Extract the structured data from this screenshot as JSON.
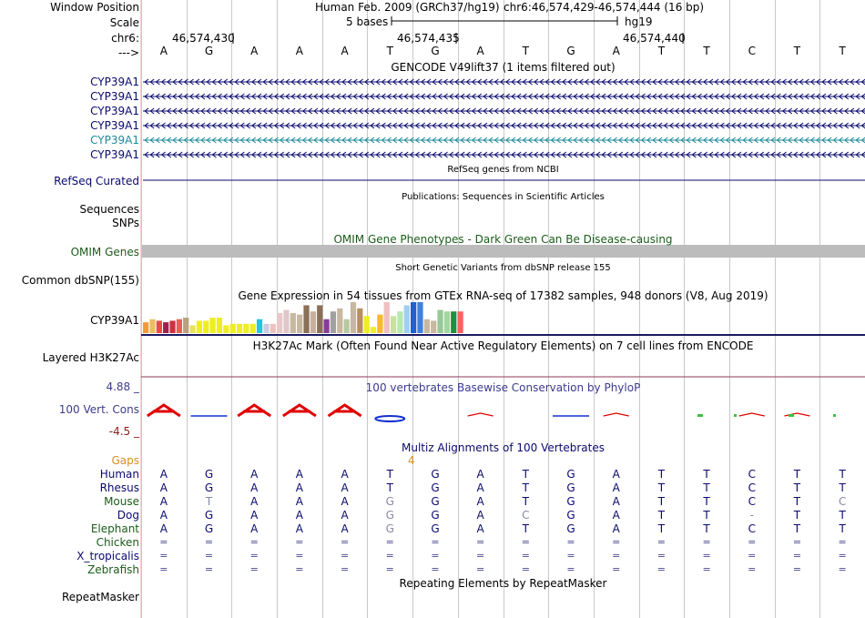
{
  "header": {
    "window_position_label": "Window Position",
    "assembly_title": "Human Feb. 2009 (GRCh37/hg19)",
    "position": "chr6:46,574,429-46,574,444 (16 bp)",
    "scale_label": "Scale",
    "scale_text": "5 bases",
    "db": "hg19",
    "chrom_label": "chr6:",
    "coord_1": "46,574,430",
    "coord_2": "46,574,435",
    "coord_3": "46,574,440",
    "strand_label": "--->"
  },
  "bases": [
    "A",
    "G",
    "A",
    "A",
    "A",
    "T",
    "G",
    "A",
    "T",
    "G",
    "A",
    "T",
    "T",
    "C",
    "T",
    "T"
  ],
  "gencode": {
    "title": "GENCODE V49lift37 (1 items filtered out)",
    "tracks": [
      {
        "label": "CYP39A1",
        "color": "#0a0a6e"
      },
      {
        "label": "CYP39A1",
        "color": "#0a0a6e"
      },
      {
        "label": "CYP39A1",
        "color": "#0a0a6e"
      },
      {
        "label": "CYP39A1",
        "color": "#0a0a6e"
      },
      {
        "label": "CYP39A1",
        "color": "#1f8a9a"
      },
      {
        "label": "CYP39A1",
        "color": "#0a0a6e"
      }
    ]
  },
  "refseq": {
    "title": "RefSeq genes from NCBI",
    "label": "RefSeq Curated"
  },
  "publications": {
    "title": "Publications: Sequences in Scientific Articles",
    "label": "Sequences"
  },
  "snps": {
    "label": "SNPs"
  },
  "omim": {
    "title": "OMIM Gene Phenotypes - Dark Green Can Be Disease-causing",
    "label": "OMIM Genes"
  },
  "dbsnp": {
    "title": "Short Genetic Variants from dbSNP release 155",
    "label": "Common dbSNP(155)"
  },
  "gtex": {
    "title": "Gene Expression in 54 tissues from GTEx RNA-seq of 17382 samples, 948 donors (V8, Aug 2019)",
    "label": "CYP39A1",
    "bars": [
      {
        "v": 0.35,
        "c": "#f39a3c"
      },
      {
        "v": 0.45,
        "c": "#e8c060"
      },
      {
        "v": 0.4,
        "c": "#e84a4a"
      },
      {
        "v": 0.35,
        "c": "#a02050"
      },
      {
        "v": 0.4,
        "c": "#d03040"
      },
      {
        "v": 0.45,
        "c": "#e86050"
      },
      {
        "v": 0.5,
        "c": "#b8a080"
      },
      {
        "v": 0.25,
        "c": "#e8e060"
      },
      {
        "v": 0.4,
        "c": "#eeee20"
      },
      {
        "v": 0.4,
        "c": "#eeee20"
      },
      {
        "v": 0.5,
        "c": "#eeee20"
      },
      {
        "v": 0.5,
        "c": "#eeee20"
      },
      {
        "v": 0.25,
        "c": "#eeee20"
      },
      {
        "v": 0.3,
        "c": "#eeee20"
      },
      {
        "v": 0.3,
        "c": "#eeee20"
      },
      {
        "v": 0.3,
        "c": "#eeee20"
      },
      {
        "v": 0.3,
        "c": "#eeee20"
      },
      {
        "v": 0.45,
        "c": "#20c8d8"
      },
      {
        "v": 0.3,
        "c": "#ccccdd"
      },
      {
        "v": 0.3,
        "c": "#f0c0c0"
      },
      {
        "v": 0.65,
        "c": "#e8c8c8"
      },
      {
        "v": 0.75,
        "c": "#e0c8c8"
      },
      {
        "v": 0.65,
        "c": "#c8b8a0"
      },
      {
        "v": 0.6,
        "c": "#c8b8a0"
      },
      {
        "v": 0.9,
        "c": "#8a7058"
      },
      {
        "v": 0.7,
        "c": "#c8b0a0"
      },
      {
        "v": 0.9,
        "c": "#8a7058"
      },
      {
        "v": 0.45,
        "c": "#8a3c9a"
      },
      {
        "v": 0.7,
        "c": "#a0a0a0"
      },
      {
        "v": 0.8,
        "c": "#c8b8a0"
      },
      {
        "v": 0.45,
        "c": "#b8c8a0"
      },
      {
        "v": 1.0,
        "c": "#c8b8a0"
      },
      {
        "v": 0.8,
        "c": "#b89060"
      },
      {
        "v": 0.55,
        "c": "#eeee20"
      },
      {
        "v": 0.2,
        "c": "#eeee20"
      },
      {
        "v": 0.6,
        "c": "#f8b830"
      },
      {
        "v": 1.0,
        "c": "#f0c0c0"
      },
      {
        "v": 0.55,
        "c": "#c8e0a0"
      },
      {
        "v": 0.7,
        "c": "#b8e8b0"
      },
      {
        "v": 0.9,
        "c": "#a0d0f0"
      },
      {
        "v": 1.0,
        "c": "#2060d0"
      },
      {
        "v": 1.0,
        "c": "#4080e0"
      },
      {
        "v": 0.45,
        "c": "#c8b8a0"
      },
      {
        "v": 0.4,
        "c": "#c8b8a0"
      },
      {
        "v": 0.75,
        "c": "#98c898"
      },
      {
        "v": 0.7,
        "c": "#a0d8a0"
      },
      {
        "v": 0.7,
        "c": "#209040"
      },
      {
        "v": 0.7,
        "c": "#ff6060"
      }
    ]
  },
  "h3k27ac": {
    "title": "H3K27Ac Mark (Often Found Near Active Regulatory Elements) on 7 cell lines from ENCODE",
    "label": "Layered H3K27Ac"
  },
  "phylop": {
    "title": "100 vertebrates Basewise Conservation by PhyloP",
    "label": "100 Vert. Cons",
    "ymax": "4.88 _",
    "ymin": "-4.5 _",
    "scores": [
      4.2,
      -0.5,
      3.6,
      3.5,
      3.6,
      -1.8,
      0,
      0.6,
      0,
      -0.3,
      0.4,
      0,
      0,
      0.1,
      0.1,
      0
    ]
  },
  "multiz": {
    "title": "Multiz Alignments of 100 Vertebrates",
    "gaps_label": "Gaps",
    "gap_count": "4",
    "species": [
      {
        "name": "Human",
        "color": "#0a0a6e",
        "seq": [
          "A",
          "G",
          "A",
          "A",
          "A",
          "T",
          "G",
          "A",
          "T",
          "G",
          "A",
          "T",
          "T",
          "C",
          "T",
          "T"
        ],
        "dim": []
      },
      {
        "name": "Rhesus",
        "color": "#0a0a6e",
        "seq": [
          "A",
          "G",
          "A",
          "A",
          "A",
          "T",
          "G",
          "A",
          "T",
          "G",
          "A",
          "T",
          "T",
          "C",
          "T",
          "T"
        ],
        "dim": []
      },
      {
        "name": "Mouse",
        "color": "#1a5c1a",
        "seq": [
          "A",
          "T",
          "A",
          "A",
          "A",
          "G",
          "G",
          "A",
          "T",
          "G",
          "A",
          "T",
          "T",
          "C",
          "T",
          "C"
        ],
        "dim": [
          1,
          5,
          15
        ]
      },
      {
        "name": "Dog",
        "color": "#0a0a6e",
        "seq": [
          "A",
          "G",
          "A",
          "A",
          "A",
          "G",
          "G",
          "A",
          "C",
          "G",
          "A",
          "T",
          "T",
          "-",
          "T",
          "T"
        ],
        "dim": [
          5,
          8,
          13
        ]
      },
      {
        "name": "Elephant",
        "color": "#1a5c1a",
        "seq": [
          "A",
          "G",
          "A",
          "A",
          "A",
          "G",
          "G",
          "A",
          "T",
          "G",
          "A",
          "T",
          "T",
          "C",
          "T",
          "T"
        ],
        "dim": [
          5
        ]
      },
      {
        "name": "Chicken",
        "color": "#1a5c1a",
        "seq": [
          "=",
          "=",
          "=",
          "=",
          "=",
          "=",
          "=",
          "=",
          "=",
          "=",
          "=",
          "=",
          "=",
          "=",
          "=",
          "="
        ],
        "dim": []
      },
      {
        "name": "X_tropicalis",
        "color": "#0a0a6e",
        "seq": [
          "=",
          "=",
          "=",
          "=",
          "=",
          "=",
          "=",
          "=",
          "=",
          "=",
          "=",
          "=",
          "=",
          "=",
          "=",
          "="
        ],
        "dim": []
      },
      {
        "name": "Zebrafish",
        "color": "#1a5c1a",
        "seq": [
          "=",
          "=",
          "=",
          "=",
          "=",
          "=",
          "=",
          "=",
          "=",
          "=",
          "=",
          "=",
          "=",
          "=",
          "=",
          "="
        ],
        "dim": []
      }
    ]
  },
  "repeatmasker": {
    "title": "Repeating Elements by RepeatMasker",
    "label": "RepeatMasker"
  },
  "colors": {
    "navy": "#0a0a6e",
    "gridline": "#c8c8c8",
    "omim_bar": "#bcbcbc",
    "h3k_line": "#8b3c5c",
    "phylop_pos": "#e00000",
    "phylop_neg": "#1030d0",
    "phylop_small": "#40c040"
  }
}
